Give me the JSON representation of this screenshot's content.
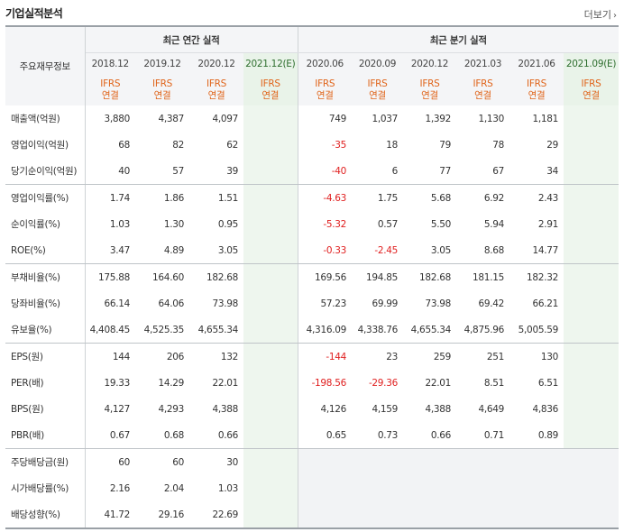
{
  "header": {
    "title": "기업실적분석",
    "more": "더보기"
  },
  "table": {
    "row_header": "주요재무정보",
    "annual_label": "최근 연간 실적",
    "quarter_label": "최근 분기 실적",
    "annual_periods": [
      "2018.12",
      "2019.12",
      "2020.12",
      "2021.12(E)"
    ],
    "quarter_periods": [
      "2020.06",
      "2020.09",
      "2020.12",
      "2021.03",
      "2021.06",
      "2021.09(E)"
    ],
    "ifrs": "IFRS",
    "consol": "연결",
    "rows": [
      {
        "label": "매출액(억원)",
        "annual": [
          "3,880",
          "4,387",
          "4,097",
          ""
        ],
        "quarter": [
          "749",
          "1,037",
          "1,392",
          "1,130",
          "1,181",
          ""
        ]
      },
      {
        "label": "영업이익(억원)",
        "annual": [
          "68",
          "82",
          "62",
          ""
        ],
        "quarter": [
          "-35",
          "18",
          "79",
          "78",
          "29",
          ""
        ]
      },
      {
        "label": "당기순이익(억원)",
        "annual": [
          "40",
          "57",
          "39",
          ""
        ],
        "quarter": [
          "-40",
          "6",
          "77",
          "67",
          "34",
          ""
        ]
      },
      {
        "label": "영업이익률(%)",
        "annual": [
          "1.74",
          "1.86",
          "1.51",
          ""
        ],
        "quarter": [
          "-4.63",
          "1.75",
          "5.68",
          "6.92",
          "2.43",
          ""
        ]
      },
      {
        "label": "순이익률(%)",
        "annual": [
          "1.03",
          "1.30",
          "0.95",
          ""
        ],
        "quarter": [
          "-5.32",
          "0.57",
          "5.50",
          "5.94",
          "2.91",
          ""
        ]
      },
      {
        "label": "ROE(%)",
        "annual": [
          "3.47",
          "4.89",
          "3.05",
          ""
        ],
        "quarter": [
          "-0.33",
          "-2.45",
          "3.05",
          "8.68",
          "14.77",
          ""
        ]
      },
      {
        "label": "부채비율(%)",
        "annual": [
          "175.88",
          "164.60",
          "182.68",
          ""
        ],
        "quarter": [
          "169.56",
          "194.85",
          "182.68",
          "181.15",
          "182.32",
          ""
        ]
      },
      {
        "label": "당좌비율(%)",
        "annual": [
          "66.14",
          "64.06",
          "73.98",
          ""
        ],
        "quarter": [
          "57.23",
          "69.99",
          "73.98",
          "69.42",
          "66.21",
          ""
        ]
      },
      {
        "label": "유보율(%)",
        "annual": [
          "4,408.45",
          "4,525.35",
          "4,655.34",
          ""
        ],
        "quarter": [
          "4,316.09",
          "4,338.76",
          "4,655.34",
          "4,875.96",
          "5,005.59",
          ""
        ]
      },
      {
        "label": "EPS(원)",
        "annual": [
          "144",
          "206",
          "132",
          ""
        ],
        "quarter": [
          "-144",
          "23",
          "259",
          "251",
          "130",
          ""
        ]
      },
      {
        "label": "PER(배)",
        "annual": [
          "19.33",
          "14.29",
          "22.01",
          ""
        ],
        "quarter": [
          "-198.56",
          "-29.36",
          "22.01",
          "8.51",
          "6.51",
          ""
        ]
      },
      {
        "label": "BPS(원)",
        "annual": [
          "4,127",
          "4,293",
          "4,388",
          ""
        ],
        "quarter": [
          "4,126",
          "4,159",
          "4,388",
          "4,649",
          "4,836",
          ""
        ]
      },
      {
        "label": "PBR(배)",
        "annual": [
          "0.67",
          "0.68",
          "0.66",
          ""
        ],
        "quarter": [
          "0.65",
          "0.73",
          "0.66",
          "0.71",
          "0.89",
          ""
        ]
      },
      {
        "label": "주당배당금(원)",
        "annual": [
          "60",
          "60",
          "30",
          ""
        ],
        "quarter": [
          "",
          "",
          "",
          "",
          "",
          ""
        ]
      },
      {
        "label": "시가배당률(%)",
        "annual": [
          "2.16",
          "2.04",
          "1.03",
          ""
        ],
        "quarter": [
          "",
          "",
          "",
          "",
          "",
          ""
        ]
      },
      {
        "label": "배당성향(%)",
        "annual": [
          "41.72",
          "29.16",
          "22.69",
          ""
        ],
        "quarter": [
          "",
          "",
          "",
          "",
          "",
          ""
        ]
      }
    ]
  },
  "colors": {
    "negative": "#e02020",
    "ifrs": "#e0651b",
    "estimate_bg": "#eef6ee"
  }
}
